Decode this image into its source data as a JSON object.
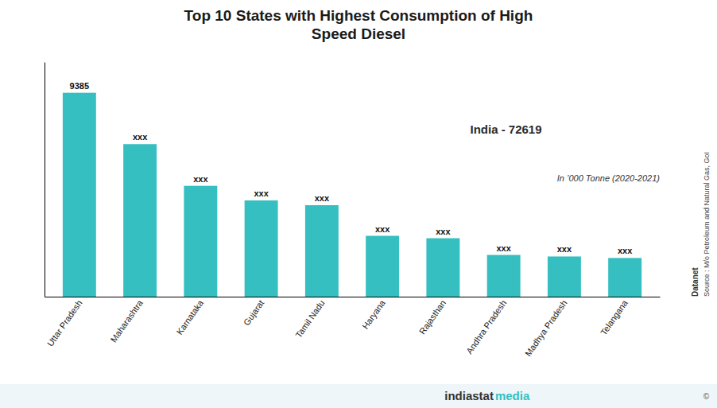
{
  "chart_data": {
    "type": "bar",
    "title": "Top 10 States with Highest Consumption of High\nSpeed Diesel",
    "categories": [
      "Uttar Pradesh",
      "Maharashtra",
      "Karnataka",
      "Gujarat",
      "Tamil Nadu",
      "Haryana",
      "Rajasthan",
      "Andhra Pradesh",
      "Madhya Pradesh",
      "Telangana"
    ],
    "values": [
      9385,
      7020,
      5100,
      4430,
      4210,
      2800,
      2690,
      1920,
      1850,
      1780
    ],
    "value_labels": [
      "9385",
      "xxx",
      "xxx",
      "xxx",
      "xxx",
      "xxx",
      "xxx",
      "xxx",
      "xxx",
      "xxx"
    ],
    "color": "#35bfc0",
    "ylim": [
      0,
      10800
    ],
    "tick_labels": "x",
    "grid": false,
    "annotations": [
      "In ’000 Tonne (2020-2021)",
      "India  -  72619",
      "Source : M/o Petroleum and Natural Gas, GoI",
      "Datanet",
      "indiastat",
      "media",
      "©"
    ]
  }
}
